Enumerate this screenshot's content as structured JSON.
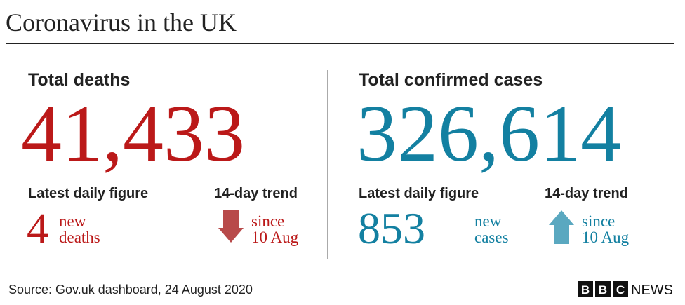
{
  "title": "Coronavirus in the UK",
  "panels": [
    {
      "heading": "Total deaths",
      "total": "41,433",
      "daily_heading": "Latest daily figure",
      "daily_value": "4",
      "daily_label": [
        "new",
        "deaths"
      ],
      "trend_heading": "14-day trend",
      "trend_label": [
        "since",
        "10 Aug"
      ]
    },
    {
      "heading": "Total confirmed cases",
      "total": "326,614",
      "daily_heading": "Latest daily figure",
      "daily_value": "853",
      "daily_label": [
        "new",
        "cases"
      ],
      "trend_heading": "14-day trend",
      "trend_label": [
        "since",
        "10 Aug"
      ]
    }
  ],
  "source": "Source: Gov.uk dashboard, 24 August 2020",
  "logo": {
    "letters": [
      "B",
      "B",
      "C"
    ],
    "text": "NEWS"
  }
}
